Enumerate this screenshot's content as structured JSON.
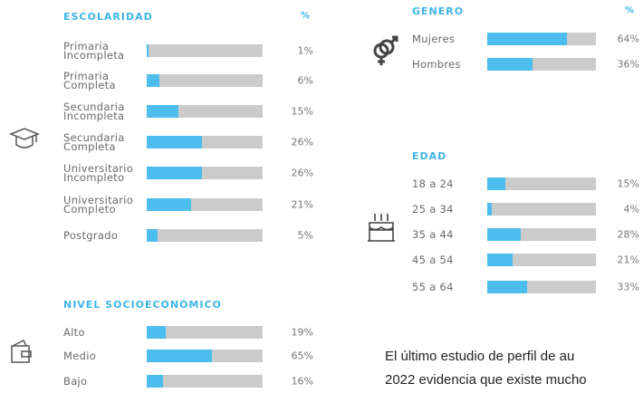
{
  "chart_data": [
    {
      "type": "bar",
      "title": "ESCOLARIDAD",
      "unit_label": "%",
      "categories": [
        "Primaria Incompleta",
        "Primaria Completa",
        "Secundaria Incompleta",
        "Secundaria Completa",
        "Universitario Incompleto",
        "Universitario Completo",
        "Postgrado"
      ],
      "values": [
        1,
        6,
        15,
        26,
        26,
        21,
        5
      ],
      "value_labels": [
        "1%",
        "6%",
        "15%",
        "26%",
        "26%",
        "21%",
        "5%"
      ],
      "xlim": [
        0,
        55
      ],
      "color": "#4dbdee",
      "track_color": "#cbcbcb"
    },
    {
      "type": "bar",
      "title": "NIVEL SOCIOECONÓMICO",
      "categories": [
        "Alto",
        "Medio",
        "Bajo"
      ],
      "values": [
        19,
        65,
        16
      ],
      "value_labels": [
        "19%",
        "65%",
        "16%"
      ],
      "xlim": [
        0,
        115
      ],
      "color": "#4dbdee",
      "track_color": "#cbcbcb"
    },
    {
      "type": "bar",
      "title": "GENERO",
      "unit_label": "%",
      "categories": [
        "Mujeres",
        "Hombres"
      ],
      "values": [
        64,
        36
      ],
      "value_labels": [
        "64%",
        "36%"
      ],
      "xlim": [
        0,
        87
      ],
      "color": "#4dbdee",
      "track_color": "#cbcbcb"
    },
    {
      "type": "bar",
      "title": "EDAD",
      "categories": [
        "18 a 24",
        "25 a 34",
        "35 a 44",
        "45 a 54",
        "55 a 64"
      ],
      "values": [
        15,
        4,
        28,
        21,
        33
      ],
      "value_labels": [
        "15%",
        "4%",
        "28%",
        "21%",
        "33%"
      ],
      "xlim": [
        0,
        90
      ],
      "color": "#4dbdee",
      "track_color": "#cbcbcb"
    }
  ],
  "paragraph": [
    "El último estudio de perfil de au",
    "2022 evidencia que existe mucho"
  ]
}
